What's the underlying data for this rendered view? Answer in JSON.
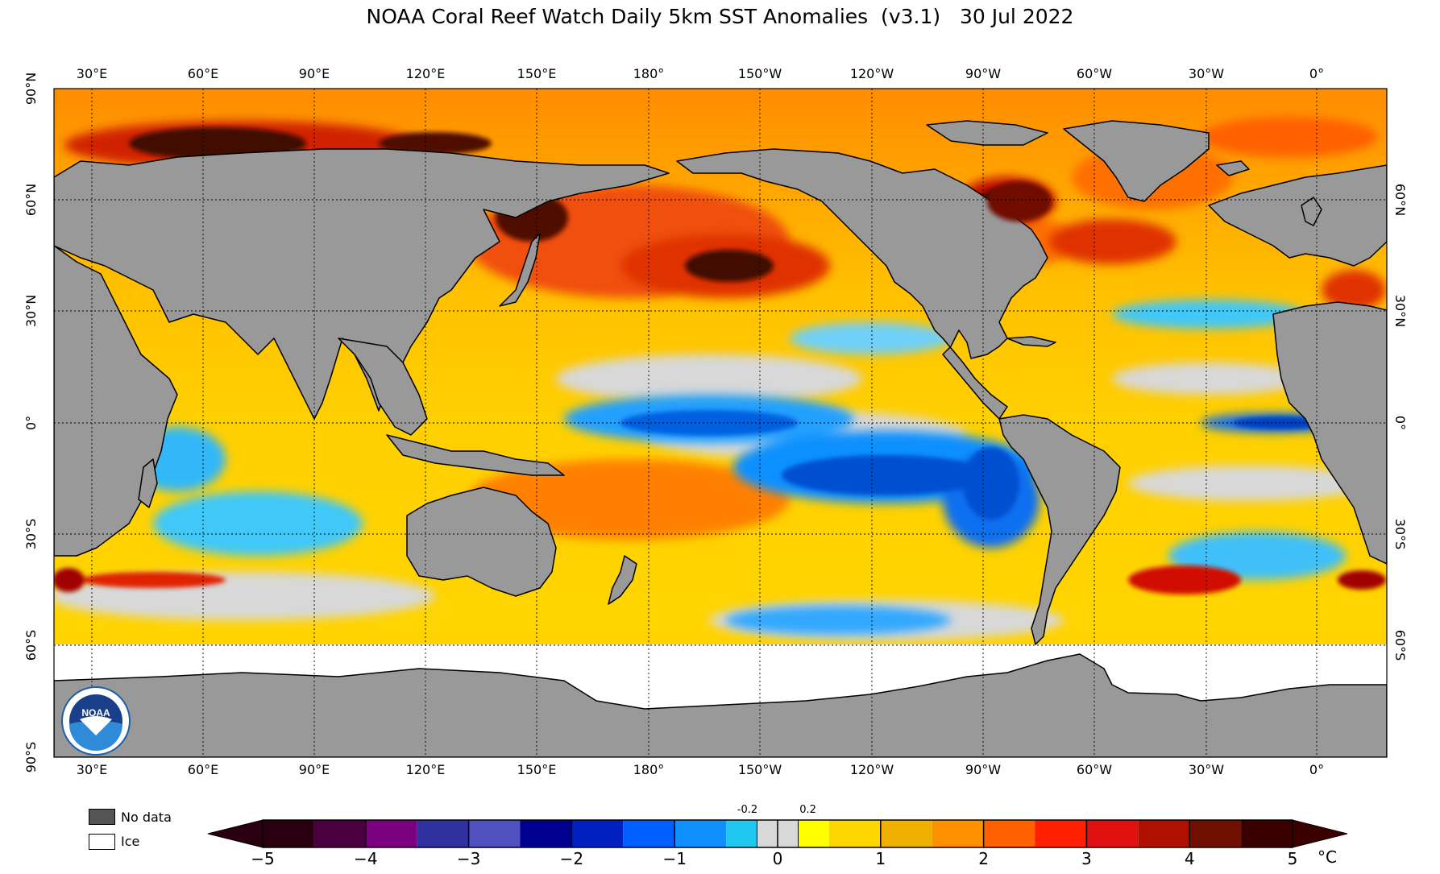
{
  "title": "NOAA Coral Reef Watch Daily 5km SST Anomalies  (v3.1)   30 Jul 2022",
  "top_lon_labels": [
    "30°E",
    "60°E",
    "90°E",
    "120°E",
    "150°E",
    "180°",
    "150°W",
    "120°W",
    "90°W",
    "60°W",
    "30°W",
    "0°"
  ],
  "bottom_lon_labels": [
    "30°E",
    "60°E",
    "90°E",
    "120°E",
    "150°E",
    "180°",
    "150°W",
    "120°W",
    "90°W",
    "60°W",
    "30°W",
    "0°"
  ],
  "left_lat_labels": [
    "90°N",
    "60°N",
    "30°N",
    "0°",
    "30°S",
    "60°S",
    "90°S"
  ],
  "right_lat_labels": [
    "60°N",
    "30°N",
    "0°",
    "30°S",
    "60°S"
  ],
  "legend": {
    "no_data": "No data",
    "ice": "Ice",
    "no_data_color": "#555555",
    "ice_color": "#ffffff",
    "land_color": "#999999"
  },
  "colorbar": {
    "unit": "°C",
    "min": -5,
    "max": 5,
    "tick_labels": [
      "−5",
      "−4",
      "−3",
      "−2",
      "−1",
      "0",
      "1",
      "2",
      "3",
      "4",
      "5"
    ],
    "small_labels": [
      "-0.2",
      "0.2"
    ],
    "colors": [
      "#2a0010",
      "#4a0040",
      "#7a0080",
      "#3030a0",
      "#5050c0",
      "#000090",
      "#0020c0",
      "#0060ff",
      "#1090ff",
      "#20c8f0",
      "#d8d8d8",
      "#ffff00",
      "#ffd700",
      "#f0b000",
      "#ff9000",
      "#ff6000",
      "#ff2000",
      "#e01010",
      "#b01000",
      "#701000",
      "#3a0000"
    ]
  },
  "logo_text": "NOAA"
}
